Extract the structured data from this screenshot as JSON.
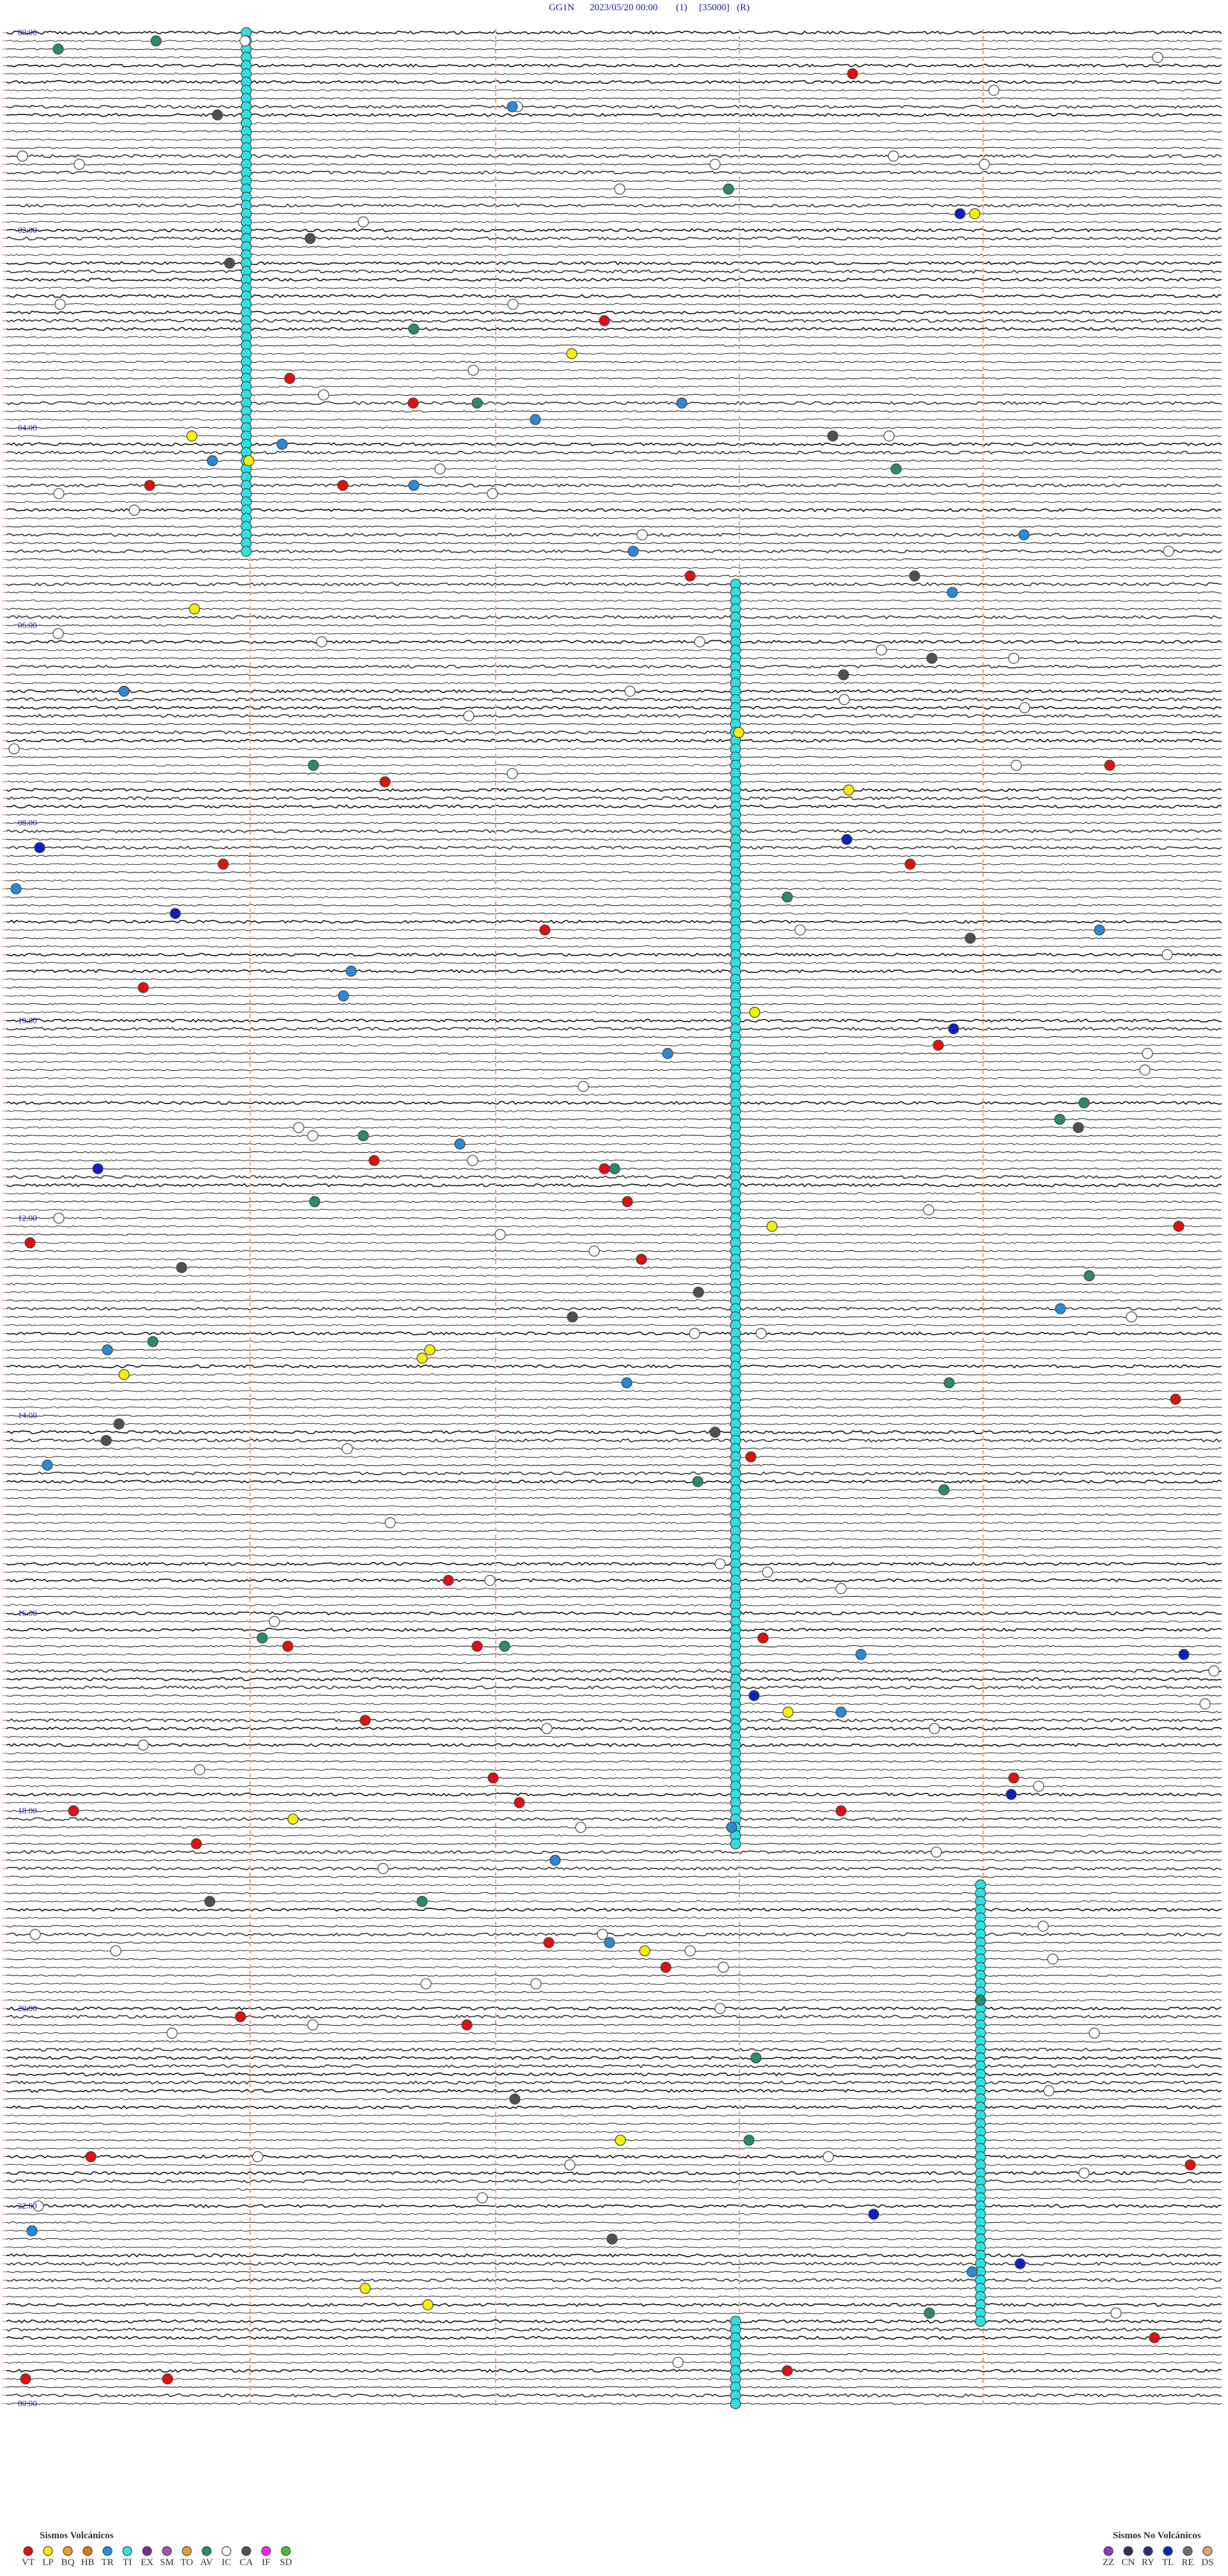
{
  "header": {
    "station": "GG1N",
    "datetime": "2023/05/20 00:00",
    "channel": "(1)",
    "scale": "[35000]",
    "mode": "(R)"
  },
  "hour_labels": [
    "00:00",
    "02:00",
    "04:00",
    "06:00",
    "08:00",
    "10:00",
    "12:00",
    "14:00",
    "16:00",
    "18:00",
    "20:00",
    "22:00",
    "00:00"
  ],
  "legend": {
    "volcanic": {
      "title": "Sismos Volcánicos",
      "items": [
        {
          "code": "VT",
          "color": "#e01010"
        },
        {
          "code": "LP",
          "color": "#f5f000"
        },
        {
          "code": "BQ",
          "color": "#f0a020"
        },
        {
          "code": "HB",
          "color": "#e07818"
        },
        {
          "code": "TR",
          "color": "#2a8ad8"
        },
        {
          "code": "TI",
          "color": "#30e0e0"
        },
        {
          "code": "EX",
          "color": "#7a2a9a"
        },
        {
          "code": "SM",
          "color": "#9a5ab0"
        },
        {
          "code": "TO",
          "color": "#e8a030"
        },
        {
          "code": "AV",
          "color": "#2a8a6a"
        },
        {
          "code": "IC",
          "color": "#ffffff"
        },
        {
          "code": "CA",
          "color": "#505050"
        },
        {
          "code": "IF",
          "color": "#ff20ff"
        },
        {
          "code": "SD",
          "color": "#40c040"
        }
      ]
    },
    "non_volcanic": {
      "title": "Sismos No Volcánicos",
      "items": [
        {
          "code": "ZZ",
          "color": "#8a3ab8"
        },
        {
          "code": "CN",
          "color": "#303050"
        },
        {
          "code": "RY",
          "color": "#2a2a80"
        },
        {
          "code": "TL",
          "color": "#1020c0"
        },
        {
          "code": "RE",
          "color": "#707070"
        },
        {
          "code": "DS",
          "color": "#d8a878"
        }
      ]
    }
  }
}
